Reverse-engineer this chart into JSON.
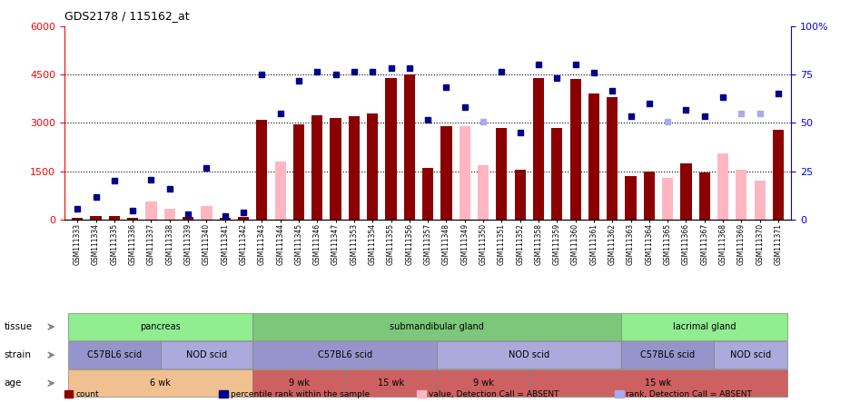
{
  "title": "GDS2178 / 115162_at",
  "samples": [
    "GSM111333",
    "GSM111334",
    "GSM111335",
    "GSM111336",
    "GSM111337",
    "GSM111338",
    "GSM111339",
    "GSM111340",
    "GSM111341",
    "GSM111342",
    "GSM111343",
    "GSM111344",
    "GSM111345",
    "GSM111346",
    "GSM111347",
    "GSM111353",
    "GSM111354",
    "GSM111355",
    "GSM111356",
    "GSM111357",
    "GSM111348",
    "GSM111349",
    "GSM111350",
    "GSM111351",
    "GSM111352",
    "GSM111358",
    "GSM111359",
    "GSM111360",
    "GSM111361",
    "GSM111362",
    "GSM111363",
    "GSM111364",
    "GSM111365",
    "GSM111366",
    "GSM111367",
    "GSM111368",
    "GSM111369",
    "GSM111370",
    "GSM111371"
  ],
  "count_values": [
    50,
    100,
    120,
    60,
    550,
    350,
    80,
    420,
    60,
    80,
    3100,
    1800,
    2950,
    3250,
    3150,
    3200,
    3300,
    4400,
    4500,
    1600,
    2900,
    2900,
    1700,
    2850,
    1550,
    4400,
    2850,
    4350,
    3900,
    3800,
    1350,
    1500,
    1300,
    1750,
    1450,
    2050,
    1550,
    1200,
    2800
  ],
  "absent_count": [
    false,
    false,
    false,
    false,
    true,
    true,
    false,
    true,
    false,
    false,
    false,
    true,
    false,
    false,
    false,
    false,
    false,
    false,
    false,
    false,
    false,
    true,
    true,
    false,
    false,
    false,
    false,
    false,
    false,
    false,
    false,
    false,
    true,
    false,
    false,
    true,
    true,
    true,
    false
  ],
  "percentile_values": [
    350,
    700,
    1200,
    280,
    1250,
    950,
    180,
    1600,
    100,
    220,
    4500,
    3300,
    4300,
    4600,
    4500,
    4600,
    4600,
    4700,
    4700,
    3100,
    4100,
    3500,
    3050,
    4600,
    2700,
    4800,
    4400,
    4800,
    4550,
    4000,
    3200,
    3600,
    3050,
    3400,
    3200,
    3800,
    3300,
    3300,
    3900
  ],
  "absent_percentile": [
    false,
    false,
    false,
    false,
    false,
    false,
    false,
    false,
    false,
    false,
    false,
    false,
    false,
    false,
    false,
    false,
    false,
    false,
    false,
    false,
    false,
    false,
    true,
    false,
    false,
    false,
    false,
    false,
    false,
    false,
    false,
    false,
    true,
    false,
    false,
    false,
    true,
    true,
    false
  ],
  "ylim_left": [
    0,
    6000
  ],
  "yticks_left": [
    0,
    1500,
    3000,
    4500,
    6000
  ],
  "yticks_right_pct": [
    0,
    25,
    50,
    75,
    100
  ],
  "bar_color_present": "#8B0000",
  "bar_color_absent": "#FFB6C1",
  "dot_color_present": "#00008B",
  "dot_color_absent": "#AAAAEE",
  "tissue_groups": [
    {
      "label": "pancreas",
      "start": 0,
      "end": 10,
      "color": "#90EE90"
    },
    {
      "label": "submandibular gland",
      "start": 10,
      "end": 30,
      "color": "#7BC87B"
    },
    {
      "label": "lacrimal gland",
      "start": 30,
      "end": 39,
      "color": "#90EE90"
    }
  ],
  "strain_groups": [
    {
      "label": "C57BL6 scid",
      "start": 0,
      "end": 5,
      "color": "#9595CC"
    },
    {
      "label": "NOD scid",
      "start": 5,
      "end": 10,
      "color": "#AAAADD"
    },
    {
      "label": "C57BL6 scid",
      "start": 10,
      "end": 20,
      "color": "#9595CC"
    },
    {
      "label": "NOD scid",
      "start": 20,
      "end": 30,
      "color": "#AAAADD"
    },
    {
      "label": "C57BL6 scid",
      "start": 30,
      "end": 35,
      "color": "#9595CC"
    },
    {
      "label": "NOD scid",
      "start": 35,
      "end": 39,
      "color": "#AAAADD"
    }
  ],
  "age_groups": [
    {
      "label": "6 wk",
      "start": 0,
      "end": 10,
      "color": "#F0C090"
    },
    {
      "label": "9 wk",
      "start": 10,
      "end": 15,
      "color": "#CD6060"
    },
    {
      "label": "15 wk",
      "start": 15,
      "end": 20,
      "color": "#CD6060"
    },
    {
      "label": "9 wk",
      "start": 20,
      "end": 25,
      "color": "#CD6060"
    },
    {
      "label": "15 wk",
      "start": 25,
      "end": 39,
      "color": "#CD6060"
    }
  ],
  "legend_items": [
    {
      "label": "count",
      "color": "#8B0000"
    },
    {
      "label": "percentile rank within the sample",
      "color": "#00008B"
    },
    {
      "label": "value, Detection Call = ABSENT",
      "color": "#FFB6C1"
    },
    {
      "label": "rank, Detection Call = ABSENT",
      "color": "#AAAAEE"
    }
  ]
}
